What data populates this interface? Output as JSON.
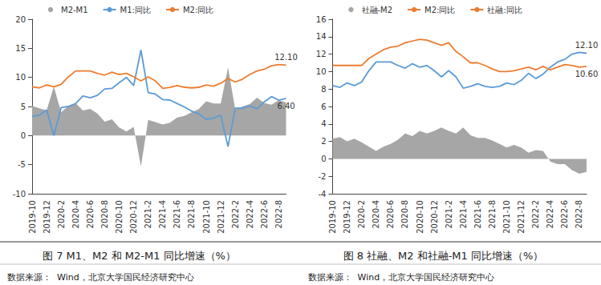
{
  "chart_data": [
    {
      "type": "line",
      "title": "图 7 M1、M2 和 M2-M1 同比增速（%）",
      "source": "数据来源：  Wind，北京大学国民经济研究中心",
      "categories": [
        "2019-10",
        null,
        "2019-12",
        null,
        "2020-2",
        null,
        "2020-4",
        null,
        "2020-6",
        null,
        "2020-8",
        null,
        "2020-10",
        null,
        "2020-12",
        null,
        "2021-2",
        null,
        "2021-4",
        null,
        "2021-6",
        null,
        "2021-8",
        null,
        "2021-10",
        null,
        "2021-12",
        null,
        "2022-2",
        null,
        "2022-4",
        null,
        "2022-6",
        null,
        "2022-8",
        null
      ],
      "ylim": [
        -10,
        20
      ],
      "yticks": [
        -10,
        -5,
        0,
        5,
        10,
        15,
        20
      ],
      "grid": false,
      "legend": "top",
      "series": [
        {
          "name": "M2-M1",
          "type": "area",
          "color": "#a6a6a6",
          "values": [
            5.1,
            4.7,
            4.3,
            8.4,
            4.0,
            5.1,
            5.6,
            4.3,
            4.6,
            3.8,
            2.4,
            2.8,
            1.4,
            0.7,
            1.5,
            -5.3,
            2.7,
            2.3,
            1.9,
            2.2,
            3.1,
            3.4,
            4.0,
            4.6,
            5.9,
            5.5,
            5.5,
            11.7,
            4.5,
            5.0,
            5.4,
            6.5,
            5.6,
            5.3,
            6.1,
            5.7
          ]
        },
        {
          "name": "M1:同比",
          "type": "line",
          "color": "#5b9bd5",
          "values": [
            3.3,
            3.5,
            4.4,
            0.0,
            4.8,
            5.0,
            5.5,
            6.8,
            6.5,
            6.9,
            8.0,
            8.1,
            9.1,
            10.0,
            8.6,
            14.7,
            7.4,
            7.1,
            6.2,
            6.1,
            5.5,
            4.9,
            4.2,
            3.7,
            2.8,
            3.0,
            3.5,
            -1.9,
            4.7,
            4.7,
            5.1,
            4.6,
            5.8,
            6.7,
            6.1,
            6.4
          ],
          "value_labels": [
            null,
            null,
            null,
            null,
            null,
            null,
            null,
            null,
            null,
            null,
            null,
            null,
            null,
            null,
            null,
            null,
            null,
            null,
            null,
            null,
            null,
            null,
            null,
            null,
            null,
            null,
            null,
            null,
            null,
            null,
            null,
            null,
            null,
            null,
            null,
            "6.40"
          ]
        },
        {
          "name": "M2:同比",
          "type": "line",
          "color": "#ed7d31",
          "values": [
            8.4,
            8.2,
            8.7,
            8.4,
            8.8,
            10.1,
            11.1,
            11.1,
            11.1,
            10.7,
            10.4,
            10.9,
            10.5,
            10.7,
            10.1,
            9.4,
            10.1,
            9.4,
            8.1,
            8.3,
            8.6,
            8.3,
            8.2,
            8.3,
            8.7,
            8.5,
            9.0,
            9.8,
            9.2,
            9.7,
            10.5,
            11.1,
            11.4,
            12.0,
            12.2,
            12.1
          ],
          "value_labels": [
            null,
            null,
            null,
            null,
            null,
            null,
            null,
            null,
            null,
            null,
            null,
            null,
            null,
            null,
            null,
            null,
            null,
            null,
            null,
            null,
            null,
            null,
            null,
            null,
            null,
            null,
            null,
            null,
            null,
            null,
            null,
            null,
            null,
            null,
            null,
            "12.10"
          ]
        }
      ]
    },
    {
      "type": "line",
      "title": "图 8 社融、M2 和社融-M1 同比增速（%）",
      "source": "数据来源：  Wind，北京大学国民经济研究中心",
      "categories": [
        "2019-10",
        null,
        "2019-12",
        null,
        "2020-2",
        null,
        "2020-4",
        null,
        "2020-6",
        null,
        "2020-8",
        null,
        "2020-10",
        null,
        "2020-12",
        null,
        "2021-2",
        null,
        "2021-4",
        null,
        "2021-6",
        null,
        "2021-8",
        null,
        "2021-10",
        null,
        "2021-12",
        null,
        "2022-2",
        null,
        "2022-4",
        null,
        "2022-6",
        null,
        "2022-8",
        null
      ],
      "ylim": [
        -4,
        16
      ],
      "yticks": [
        -4,
        -2,
        0,
        2,
        4,
        6,
        8,
        10,
        12,
        14,
        16
      ],
      "grid": false,
      "legend": "top",
      "series": [
        {
          "name": "社融-M2",
          "type": "area",
          "color": "#a6a6a6",
          "values": [
            2.3,
            2.5,
            2.0,
            2.3,
            1.9,
            1.4,
            0.9,
            1.4,
            1.7,
            2.2,
            2.9,
            2.6,
            3.2,
            2.9,
            3.2,
            3.6,
            3.2,
            2.9,
            3.6,
            2.7,
            2.4,
            2.4,
            2.1,
            1.7,
            1.3,
            1.6,
            1.3,
            0.7,
            1.0,
            0.9,
            -0.3,
            -0.6,
            -0.6,
            -1.3,
            -1.7,
            -1.5
          ]
        },
        {
          "name": "M2:同比",
          "type": "line",
          "color": "#5b9bd5",
          "values": [
            8.4,
            8.2,
            8.7,
            8.4,
            8.8,
            10.1,
            11.1,
            11.1,
            11.1,
            10.7,
            10.4,
            10.9,
            10.5,
            10.7,
            10.1,
            9.4,
            10.1,
            9.4,
            8.1,
            8.3,
            8.6,
            8.3,
            8.2,
            8.3,
            8.7,
            8.5,
            9.0,
            9.8,
            9.2,
            9.7,
            10.5,
            11.1,
            11.4,
            12.0,
            12.2,
            12.1
          ],
          "value_labels": [
            null,
            null,
            null,
            null,
            null,
            null,
            null,
            null,
            null,
            null,
            null,
            null,
            null,
            null,
            null,
            null,
            null,
            null,
            null,
            null,
            null,
            null,
            null,
            null,
            null,
            null,
            null,
            null,
            null,
            null,
            null,
            null,
            null,
            null,
            null,
            "12.10"
          ]
        },
        {
          "name": "社融:同比",
          "type": "line",
          "color": "#ed7d31",
          "values": [
            10.7,
            10.7,
            10.7,
            10.7,
            10.7,
            11.5,
            12.0,
            12.5,
            12.8,
            12.9,
            13.3,
            13.5,
            13.7,
            13.6,
            13.3,
            13.0,
            13.3,
            12.3,
            11.7,
            11.0,
            11.0,
            10.7,
            10.3,
            10.0,
            10.0,
            10.1,
            10.3,
            10.5,
            10.2,
            10.6,
            10.2,
            10.5,
            10.8,
            10.7,
            10.5,
            10.6
          ],
          "value_labels": [
            null,
            null,
            null,
            null,
            null,
            null,
            null,
            null,
            null,
            null,
            null,
            null,
            null,
            null,
            null,
            null,
            null,
            null,
            null,
            null,
            null,
            null,
            null,
            null,
            null,
            null,
            null,
            null,
            null,
            null,
            null,
            null,
            null,
            null,
            null,
            "10.60"
          ]
        }
      ]
    }
  ]
}
